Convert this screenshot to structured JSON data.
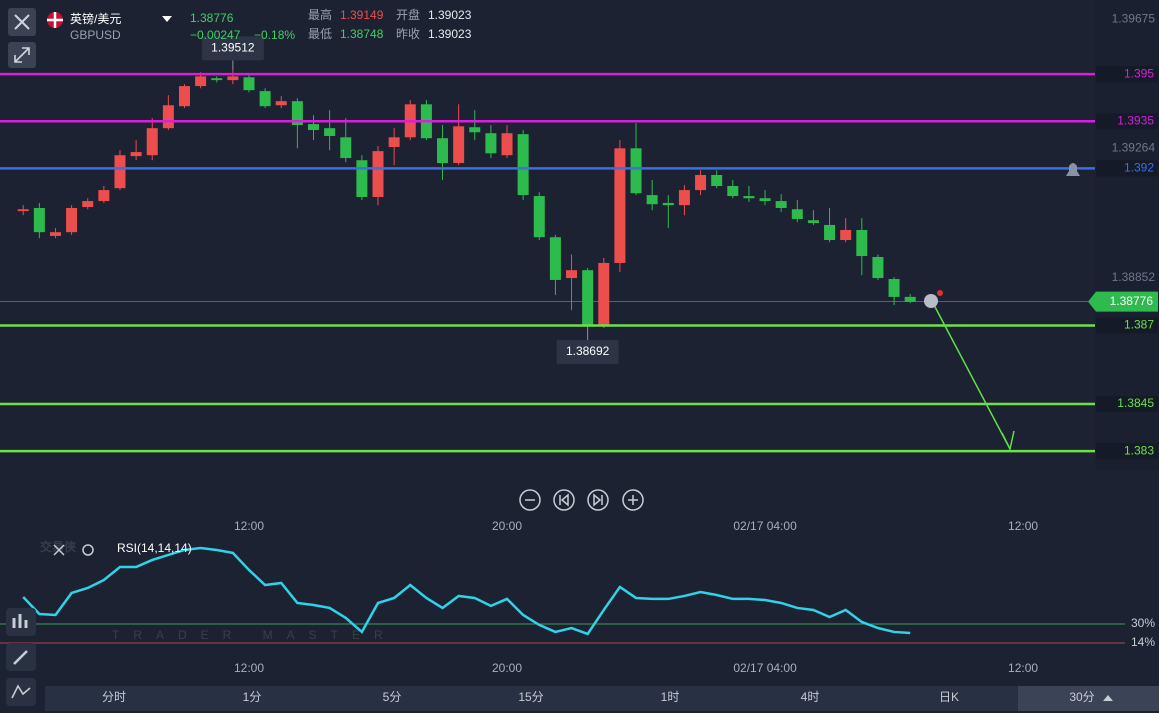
{
  "header": {
    "title": "英镑/美元",
    "code": "GBPUSD",
    "price": "1.38776",
    "change": "−0.00247",
    "change_pct": "−0.18%",
    "stats": [
      {
        "label": "最高",
        "value": "1.39149"
      },
      {
        "label": "开盘",
        "value": "1.39023"
      },
      {
        "label": "最低",
        "value": "1.38748"
      },
      {
        "label": "昨收",
        "value": "1.39023"
      }
    ]
  },
  "chart_data": [
    {
      "type": "candlestick",
      "open": [
        1.39064,
        1.39074,
        1.38985,
        1.38997,
        1.39077,
        1.39096,
        1.39137,
        1.39239,
        1.39242,
        1.39328,
        1.39398,
        1.39462,
        1.39487,
        1.39481,
        1.3949,
        1.39446,
        1.39401,
        1.39414,
        1.39341,
        1.39328,
        1.39299,
        1.39226,
        1.39109,
        1.39268,
        1.39299,
        1.39404,
        1.39296,
        1.39217,
        1.39331,
        1.39312,
        1.39242,
        1.39309,
        1.39112,
        1.38981,
        1.38851,
        1.38876,
        1.38699,
        1.38899,
        1.39264,
        1.39115,
        1.3909,
        1.39083,
        1.39131,
        1.39179,
        1.39144,
        1.39112,
        1.39105,
        1.39096,
        1.3907,
        1.39035,
        1.3902,
        1.38972,
        1.39004,
        1.38918,
        1.38848,
        1.38791
      ],
      "high": [
        1.39083,
        1.3909,
        1.3901,
        1.39083,
        1.39105,
        1.39144,
        1.39258,
        1.3929,
        1.3936,
        1.39433,
        1.39468,
        1.39506,
        1.39493,
        1.39512,
        1.39497,
        1.39455,
        1.3943,
        1.39423,
        1.39369,
        1.39385,
        1.3936,
        1.39242,
        1.39271,
        1.39328,
        1.39417,
        1.39417,
        1.39338,
        1.39404,
        1.39385,
        1.39338,
        1.39338,
        1.39322,
        1.39124,
        1.38988,
        1.38926,
        1.38883,
        1.38915,
        1.3929,
        1.39344,
        1.39163,
        1.39115,
        1.39147,
        1.39194,
        1.39194,
        1.39163,
        1.39144,
        1.39131,
        1.39118,
        1.39099,
        1.39067,
        1.39074,
        1.39042,
        1.39042,
        1.38926,
        1.38854,
        1.388
      ],
      "low": [
        1.39051,
        1.38978,
        1.38978,
        1.38988,
        1.3907,
        1.3909,
        1.39131,
        1.39226,
        1.39226,
        1.39322,
        1.39392,
        1.39455,
        1.39474,
        1.39468,
        1.39442,
        1.39392,
        1.39392,
        1.39264,
        1.3929,
        1.39258,
        1.3922,
        1.39099,
        1.39083,
        1.3921,
        1.3929,
        1.3929,
        1.39163,
        1.3921,
        1.3929,
        1.39233,
        1.39233,
        1.39099,
        1.38972,
        1.38797,
        1.38749,
        1.38692,
        1.38692,
        1.3887,
        1.39115,
        1.39067,
        1.3901,
        1.39051,
        1.39115,
        1.39137,
        1.39105,
        1.39093,
        1.39083,
        1.39061,
        1.39029,
        1.3902,
        1.38965,
        1.38965,
        1.3886,
        1.38845,
        1.38765,
        1.38771
      ],
      "close": [
        1.3907,
        1.38997,
        1.38997,
        1.39074,
        1.39096,
        1.39131,
        1.39242,
        1.39252,
        1.39328,
        1.39401,
        1.39462,
        1.39493,
        1.39481,
        1.39493,
        1.39449,
        1.39398,
        1.39414,
        1.39338,
        1.39322,
        1.39303,
        1.39233,
        1.39109,
        1.39255,
        1.39299,
        1.39404,
        1.39296,
        1.39217,
        1.39334,
        1.39315,
        1.39248,
        1.39312,
        1.39115,
        1.38981,
        1.38845,
        1.38876,
        1.38699,
        1.38899,
        1.39264,
        1.39121,
        1.39086,
        1.39083,
        1.39131,
        1.39179,
        1.39144,
        1.39112,
        1.39105,
        1.39096,
        1.39074,
        1.39039,
        1.39026,
        1.38972,
        1.39004,
        1.38921,
        1.38851,
        1.38791,
        1.38776
      ],
      "up_color": "#ec4d4d",
      "down_color": "#2dbb4e",
      "current_color": "#2dbb4e",
      "xlim": [
        -1.44,
        66.46
      ],
      "xticks": [
        {
          "value": 14,
          "label": "12:00"
        },
        {
          "value": 30,
          "label": "20:00"
        },
        {
          "value": 46,
          "label": "02/17 04:00"
        },
        {
          "value": 62,
          "label": "12:00"
        }
      ],
      "ylim": [
        1.3824,
        1.39736
      ],
      "yticks": [
        1.39675,
        1.39264,
        1.38852
      ],
      "hlines": [
        {
          "value": 1.395,
          "color": "#d91ee0"
        },
        {
          "value": 1.3935,
          "color": "#d91ee0"
        },
        {
          "value": 1.392,
          "color": "#3b6fe3"
        },
        {
          "value": 1.387,
          "color": "#6fe04a"
        },
        {
          "value": 1.3845,
          "color": "#6fe04a"
        },
        {
          "value": 1.383,
          "color": "#6fe04a"
        }
      ]
    },
    {
      "type": "line",
      "title": "RSI(14,14,14)",
      "color": "#2fd3e8",
      "values": [
        52.7,
        38.4,
        37.6,
        56.1,
        60.3,
        67.0,
        78.0,
        78.0,
        83.9,
        88.1,
        92.3,
        94.0,
        92.3,
        89.8,
        75.5,
        62.8,
        64.5,
        47.7,
        46.0,
        43.5,
        35.1,
        23.3,
        47.7,
        51.9,
        62.8,
        51.9,
        43.5,
        53.6,
        51.9,
        45.2,
        51.1,
        37.6,
        29.2,
        23.3,
        26.6,
        21.6,
        41.8,
        61.2,
        51.9,
        51.1,
        51.1,
        53.6,
        56.9,
        54.4,
        51.1,
        51.1,
        50.2,
        47.7,
        43.5,
        41.8,
        35.9,
        41.8,
        31.7,
        26.6,
        23.3,
        22.4
      ],
      "ylim": [
        8.1,
        100.7
      ],
      "yticks": [
        {
          "value": 30,
          "label": "30%"
        },
        {
          "value": 14,
          "label": "14%"
        }
      ],
      "ytick_colors": [
        "#3f9a5a",
        "#b04646"
      ]
    }
  ],
  "watermark": {
    "title": "交易侠",
    "subtitle": "TRADER MASTER"
  },
  "tabs": [
    "分时",
    "1分",
    "5分",
    "15分",
    "1时",
    "4时",
    "日K",
    "30分"
  ]
}
